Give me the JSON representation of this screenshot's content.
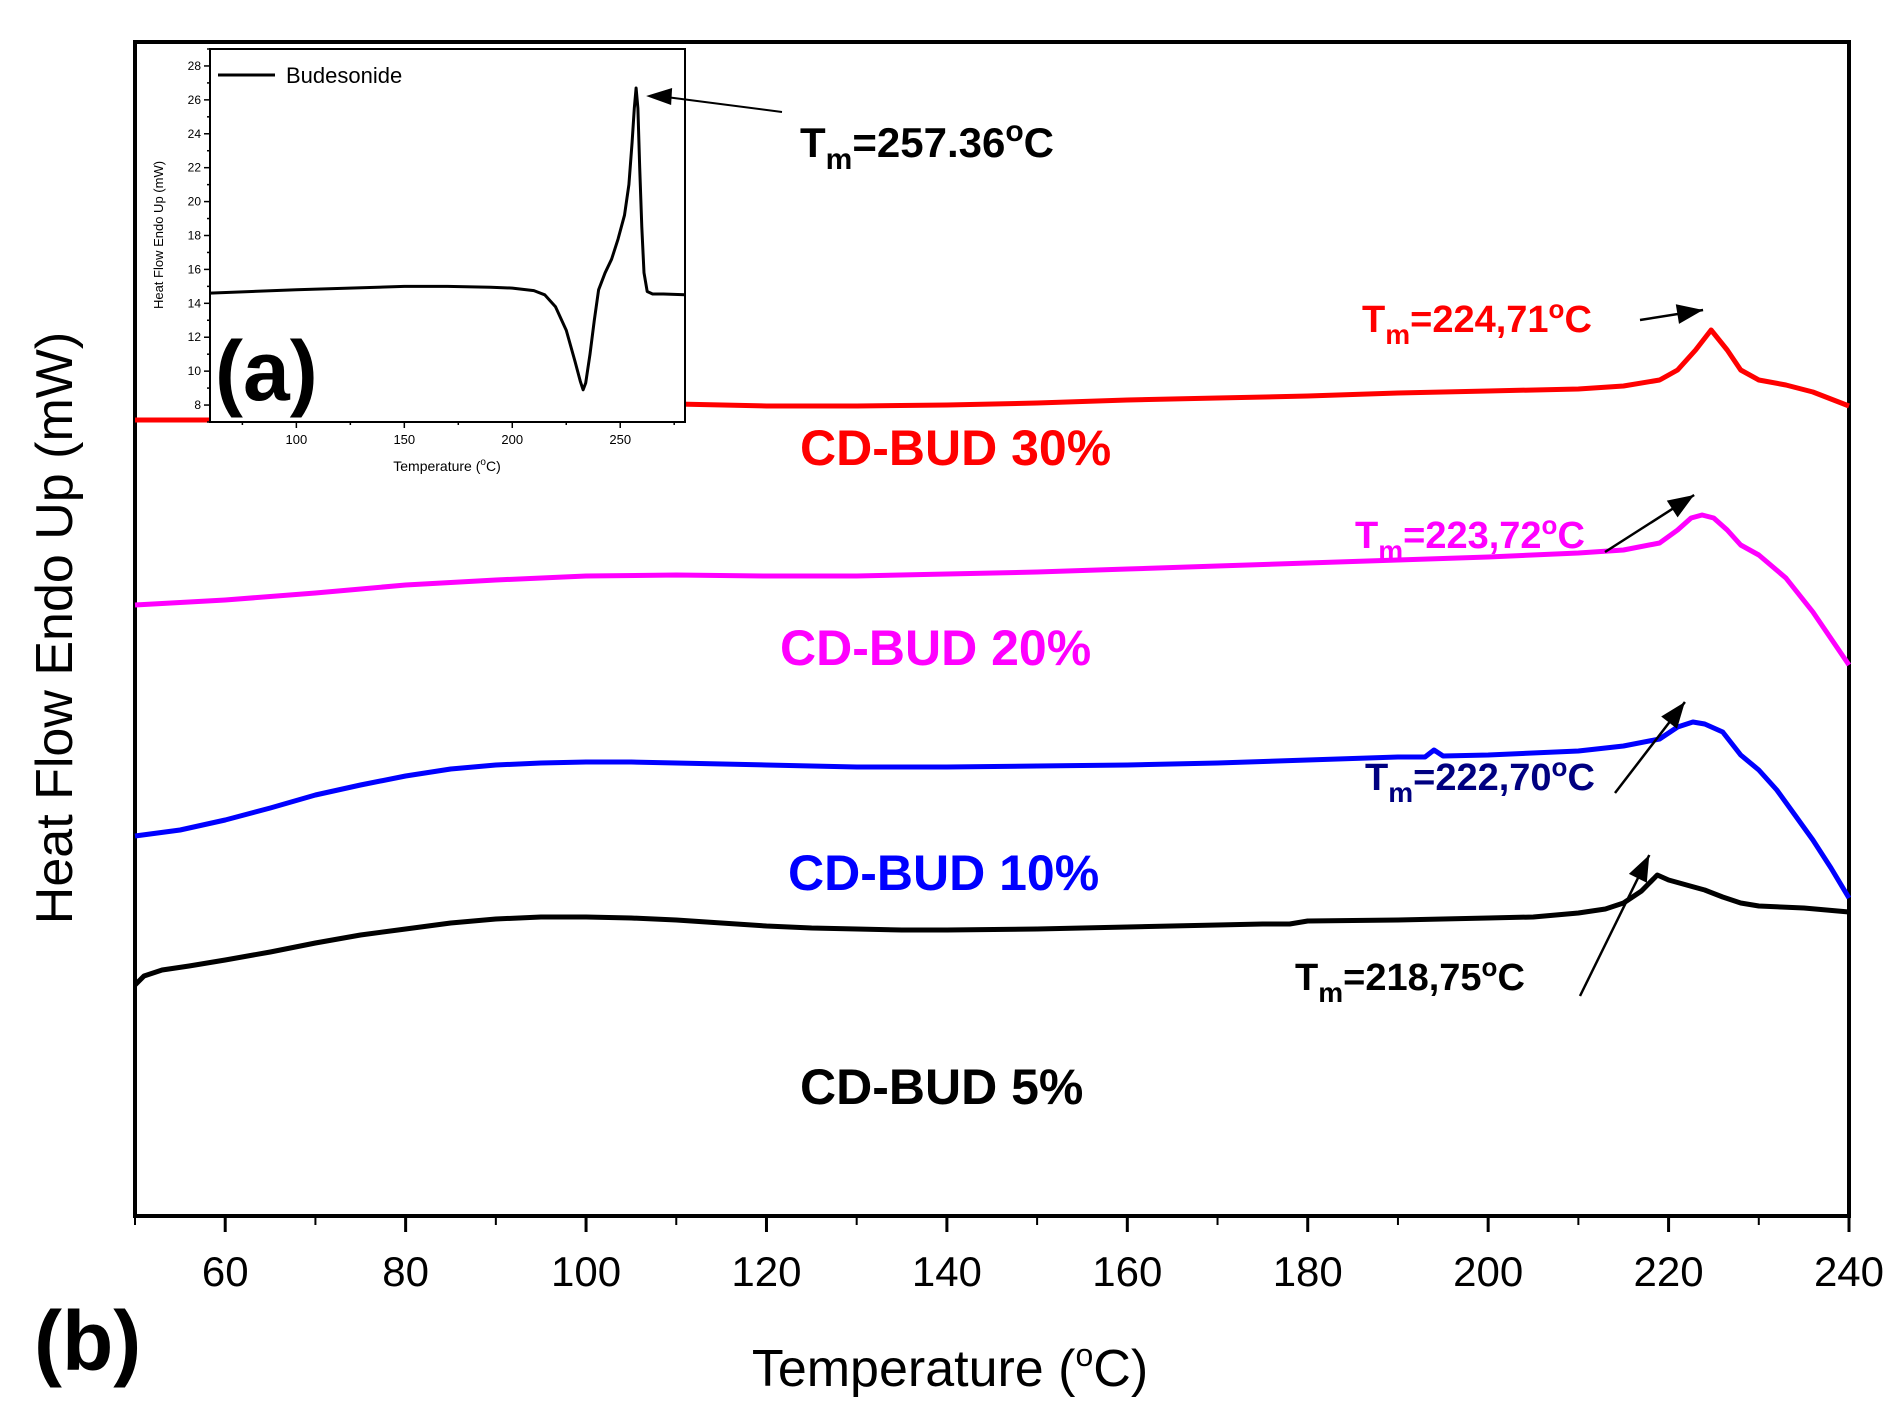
{
  "chart_data": [
    {
      "id": "main",
      "type": "line",
      "panel_label": "(b)",
      "xlabel_main": "Temperature (",
      "xlabel_sup": "o",
      "xlabel_end": "C)",
      "ylabel": "Heat Flow Endo Up (mW)",
      "xlim": [
        50,
        240
      ],
      "x_ticks": [
        60,
        80,
        100,
        120,
        140,
        160,
        180,
        200,
        220,
        240
      ],
      "y_ticks_shown": false,
      "series": [
        {
          "name": "CD-BUD 30%",
          "color": "#ff0000",
          "annotation": {
            "prefix": "T",
            "sub": "m",
            "value": "=224,71",
            "deg": "o",
            "unit": "C",
            "peak_x": 224.71
          },
          "points": [
            [
              50,
              420
            ],
            [
              60,
              420
            ],
            [
              70,
              417
            ],
            [
              80,
              412
            ],
            [
              90,
              406
            ],
            [
              100,
              403
            ],
            [
              110,
              404
            ],
            [
              120,
              406
            ],
            [
              130,
              406
            ],
            [
              140,
              405
            ],
            [
              150,
              403
            ],
            [
              160,
              400
            ],
            [
              170,
              398
            ],
            [
              180,
              396
            ],
            [
              190,
              393
            ],
            [
              200,
              391
            ],
            [
              210,
              389
            ],
            [
              215,
              386
            ],
            [
              219,
              380
            ],
            [
              221,
              370
            ],
            [
              223,
              350
            ],
            [
              224.71,
              330
            ],
            [
              226.5,
              350
            ],
            [
              228,
              370
            ],
            [
              230,
              380
            ],
            [
              233,
              385
            ],
            [
              236,
              392
            ],
            [
              240,
              406
            ]
          ]
        },
        {
          "name": "CD-BUD 20%",
          "color": "#ff00ff",
          "annotation": {
            "prefix": "T",
            "sub": "m",
            "value": "=223,72",
            "deg": "o",
            "unit": "C",
            "peak_x": 223.72
          },
          "points": [
            [
              50,
              605
            ],
            [
              60,
              600
            ],
            [
              70,
              593
            ],
            [
              80,
              585
            ],
            [
              90,
              580
            ],
            [
              100,
              576
            ],
            [
              110,
              575
            ],
            [
              120,
              576
            ],
            [
              130,
              576
            ],
            [
              140,
              574
            ],
            [
              150,
              572
            ],
            [
              160,
              569
            ],
            [
              170,
              566
            ],
            [
              180,
              563
            ],
            [
              190,
              560
            ],
            [
              200,
              557
            ],
            [
              210,
              553
            ],
            [
              215,
              550
            ],
            [
              219,
              543
            ],
            [
              221,
              530
            ],
            [
              222.5,
              518
            ],
            [
              223.72,
              515
            ],
            [
              225,
              518
            ],
            [
              226.5,
              530
            ],
            [
              228,
              545
            ],
            [
              230,
              555
            ],
            [
              233,
              578
            ],
            [
              236,
              612
            ],
            [
              240,
              665
            ]
          ]
        },
        {
          "name": "CD-BUD 10%",
          "color": "#0000ff",
          "annotation": {
            "prefix": "T",
            "sub": "m",
            "value": "=222,70",
            "deg": "o",
            "unit": "C",
            "peak_x": 222.7
          },
          "points": [
            [
              50,
              836
            ],
            [
              55,
              830
            ],
            [
              60,
              820
            ],
            [
              65,
              808
            ],
            [
              70,
              795
            ],
            [
              75,
              785
            ],
            [
              80,
              776
            ],
            [
              85,
              769
            ],
            [
              90,
              765
            ],
            [
              95,
              763
            ],
            [
              100,
              762
            ],
            [
              105,
              762
            ],
            [
              110,
              763
            ],
            [
              120,
              765
            ],
            [
              130,
              767
            ],
            [
              140,
              767
            ],
            [
              150,
              766
            ],
            [
              160,
              765
            ],
            [
              170,
              763
            ],
            [
              180,
              760
            ],
            [
              190,
              757
            ],
            [
              193,
              757
            ],
            [
              194,
              750
            ],
            [
              195,
              756
            ],
            [
              200,
              755
            ],
            [
              210,
              751
            ],
            [
              215,
              746
            ],
            [
              219,
              739
            ],
            [
              221,
              727
            ],
            [
              222.7,
              722
            ],
            [
              224,
              724
            ],
            [
              226,
              732
            ],
            [
              228,
              755
            ],
            [
              230,
              770
            ],
            [
              232,
              790
            ],
            [
              234,
              815
            ],
            [
              236,
              840
            ],
            [
              238,
              868
            ],
            [
              240,
              898
            ]
          ]
        },
        {
          "name": "CD-BUD 5%",
          "color": "#000000",
          "annotation": {
            "prefix": "T",
            "sub": "m",
            "value": "=218,75",
            "deg": "o",
            "unit": "C",
            "peak_x": 218.75
          },
          "points": [
            [
              50,
              985
            ],
            [
              51,
              976
            ],
            [
              53,
              970
            ],
            [
              56,
              966
            ],
            [
              60,
              960
            ],
            [
              65,
              952
            ],
            [
              70,
              943
            ],
            [
              75,
              935
            ],
            [
              80,
              929
            ],
            [
              85,
              923
            ],
            [
              90,
              919
            ],
            [
              95,
              917
            ],
            [
              100,
              917
            ],
            [
              105,
              918
            ],
            [
              110,
              920
            ],
            [
              115,
              923
            ],
            [
              120,
              926
            ],
            [
              125,
              928
            ],
            [
              130,
              929
            ],
            [
              135,
              930
            ],
            [
              140,
              930
            ],
            [
              150,
              929
            ],
            [
              160,
              927
            ],
            [
              170,
              925
            ],
            [
              175,
              924
            ],
            [
              178,
              924
            ],
            [
              180,
              921
            ],
            [
              190,
              920
            ],
            [
              200,
              918
            ],
            [
              205,
              917
            ],
            [
              210,
              913
            ],
            [
              213,
              909
            ],
            [
              215,
              903
            ],
            [
              217,
              891
            ],
            [
              218.75,
              875
            ],
            [
              220,
              880
            ],
            [
              222,
              885
            ],
            [
              224,
              890
            ],
            [
              226,
              897
            ],
            [
              228,
              903
            ],
            [
              230,
              906
            ],
            [
              235,
              908
            ],
            [
              240,
              912
            ]
          ]
        }
      ]
    },
    {
      "id": "inset",
      "type": "line",
      "panel_label": "(a)",
      "xlabel_main": "Temperature (",
      "xlabel_sup": "o",
      "xlabel_end": "C)",
      "ylabel": "Heat Flow Endo Up (mW)",
      "xlim": [
        60,
        280
      ],
      "ylim": [
        7,
        29
      ],
      "x_ticks": [
        100,
        150,
        200,
        250
      ],
      "y_ticks": [
        8,
        10,
        12,
        14,
        16,
        18,
        20,
        22,
        24,
        26,
        28
      ],
      "legend": "Budesonide",
      "legend_position": "top-left",
      "annotation": {
        "prefix": "T",
        "sub": "m",
        "value": "=257.36",
        "deg": "o",
        "unit": "C",
        "peak_x": 257.36
      },
      "series": [
        {
          "name": "Budesonide",
          "color": "#000000",
          "points": [
            [
              60,
              14.6
            ],
            [
              100,
              14.8
            ],
            [
              150,
              15
            ],
            [
              170,
              15
            ],
            [
              190,
              14.95
            ],
            [
              200,
              14.9
            ],
            [
              210,
              14.75
            ],
            [
              215,
              14.5
            ],
            [
              220,
              13.8
            ],
            [
              225,
              12.4
            ],
            [
              229,
              10.6
            ],
            [
              231.5,
              9.4
            ],
            [
              232.8,
              8.9
            ],
            [
              234,
              9.3
            ],
            [
              236,
              11
            ],
            [
              238,
              13
            ],
            [
              240,
              14.8
            ],
            [
              243,
              15.8
            ],
            [
              246,
              16.6
            ],
            [
              249,
              17.8
            ],
            [
              252,
              19.2
            ],
            [
              254,
              21
            ],
            [
              255.5,
              23.5
            ],
            [
              256.5,
              25.5
            ],
            [
              257.36,
              26.7
            ],
            [
              258.2,
              25.5
            ],
            [
              259,
              22
            ],
            [
              260,
              18.5
            ],
            [
              261,
              15.8
            ],
            [
              262.5,
              14.7
            ],
            [
              265,
              14.55
            ],
            [
              270,
              14.55
            ],
            [
              280,
              14.5
            ]
          ]
        }
      ]
    }
  ]
}
